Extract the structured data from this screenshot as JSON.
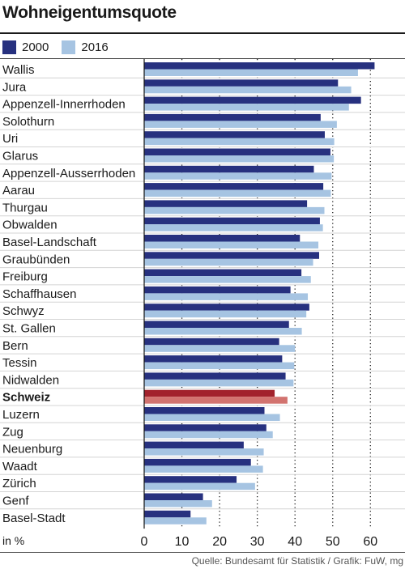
{
  "chart_data": {
    "type": "bar",
    "orientation": "horizontal",
    "title": "Wohneigentumsquote",
    "unit_label": "in %",
    "source": "Quelle: Bundesamt für Statistik / Grafik: FuW, mg",
    "categories": [
      "Wallis",
      "Jura",
      "Appenzell-Innerrhoden",
      "Solothurn",
      "Uri",
      "Glarus",
      "Appenzell-Ausserrhoden",
      "Aarau",
      "Thurgau",
      "Obwalden",
      "Basel-Landschaft",
      "Graubünden",
      "Freiburg",
      "Schaffhausen",
      "Schwyz",
      "St. Gallen",
      "Bern",
      "Tessin",
      "Nidwalden",
      "Schweiz",
      "Luzern",
      "Zug",
      "Neuenburg",
      "Waadt",
      "Zürich",
      "Genf",
      "Basel-Stadt"
    ],
    "highlight_category": "Schweiz",
    "series": [
      {
        "name": "2000",
        "color": "#27317f",
        "highlight_color": "#a2222c",
        "values": [
          61.1,
          51.4,
          57.5,
          46.8,
          47.9,
          49.4,
          45.0,
          47.5,
          43.2,
          46.6,
          41.3,
          46.4,
          41.7,
          38.8,
          43.8,
          38.4,
          35.8,
          36.6,
          37.5,
          34.6,
          31.9,
          32.4,
          26.4,
          28.3,
          24.5,
          15.6,
          12.3
        ]
      },
      {
        "name": "2016",
        "color": "#a6c4e2",
        "highlight_color": "#d2736f",
        "values": [
          56.7,
          54.9,
          54.3,
          51.1,
          50.4,
          50.3,
          49.7,
          49.5,
          47.8,
          47.4,
          46.2,
          44.8,
          44.2,
          43.4,
          43.0,
          41.8,
          40.0,
          39.8,
          39.6,
          38.0,
          36.0,
          34.1,
          31.7,
          31.5,
          29.4,
          18.0,
          16.5
        ]
      }
    ],
    "xlim": [
      0,
      65
    ],
    "xticks": [
      0,
      10,
      20,
      30,
      40,
      50,
      60
    ],
    "grid": "vertical-dotted",
    "legend_position": "top-left"
  }
}
